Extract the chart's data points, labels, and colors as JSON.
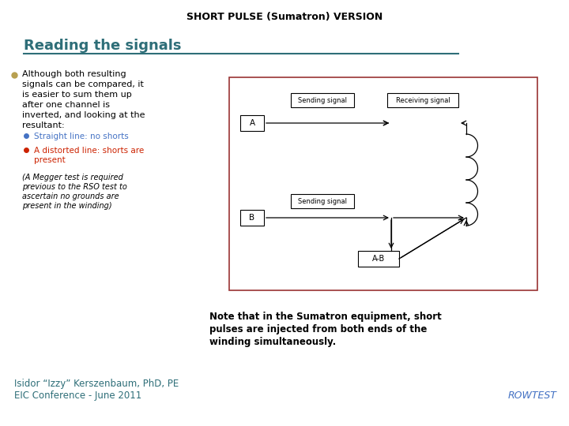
{
  "title": "SHORT PULSE (Sumatron) VERSION",
  "heading": "Reading the signals",
  "heading_color": "#2E6E78",
  "heading_underline_color": "#2E6E78",
  "bullet_color": "#B8A050",
  "sub_bullet1_color": "#4472C4",
  "sub_bullet1": "Straight line: no shorts",
  "sub_bullet2_color": "#CC2200",
  "sub_bullet2_line1": "A distorted line: shorts are",
  "sub_bullet2_line2": "present",
  "italic_note_lines": [
    "(A Megger test is required",
    "previous to the RSO test to",
    "ascertain no grounds are",
    "present in the winding)"
  ],
  "note_bold_lines": [
    "Note that in the Sumatron equipment, short",
    "pulses are injected from both ends of the",
    "winding simultaneously."
  ],
  "footer_left1": "Isidor “Izzy” Kerszenbaum, PhD, PE",
  "footer_left2": "EIC Conference - June 2011",
  "footer_right": "ROWTEST",
  "footer_color": "#2E6E78",
  "footer_right_color": "#4472C4",
  "bg_color": "#FFFFFF",
  "outer_box_color": "#993333",
  "inner_box_color": "#000000",
  "diagram_sending1": "Sending signal",
  "diagram_receiving": "Receiving signal",
  "diagram_sending2": "Sending signal",
  "diagram_label_A": "A",
  "diagram_label_B": "B",
  "diagram_label_AB": "A-B"
}
